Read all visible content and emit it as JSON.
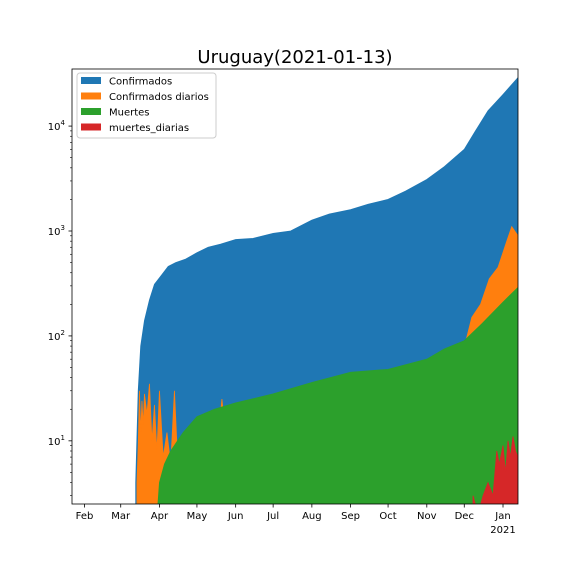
{
  "chart_data": {
    "type": "area",
    "title": "Uruguay(2021-01-13)",
    "xlabel": "",
    "ylabel": "",
    "yscale": "log",
    "ylim": [
      2.5,
      35000
    ],
    "xlim": [
      "2020-01-22",
      "2021-01-13"
    ],
    "grid": false,
    "legend_position": "upper-left",
    "x_ticks": [
      {
        "date": "2020-02-01",
        "label": "Feb"
      },
      {
        "date": "2020-03-01",
        "label": "Mar"
      },
      {
        "date": "2020-04-01",
        "label": "Apr"
      },
      {
        "date": "2020-05-01",
        "label": "May"
      },
      {
        "date": "2020-06-01",
        "label": "Jun"
      },
      {
        "date": "2020-07-01",
        "label": "Jul"
      },
      {
        "date": "2020-08-01",
        "label": "Aug"
      },
      {
        "date": "2020-09-01",
        "label": "Sep"
      },
      {
        "date": "2020-10-01",
        "label": "Oct"
      },
      {
        "date": "2020-11-01",
        "label": "Nov"
      },
      {
        "date": "2020-12-01",
        "label": "Dec"
      },
      {
        "date": "2021-01-01",
        "label": "Jan",
        "sublabel": "2021"
      }
    ],
    "y_ticks": [
      {
        "value": 10,
        "base": "10",
        "exp": "1"
      },
      {
        "value": 100,
        "base": "10",
        "exp": "2"
      },
      {
        "value": 1000,
        "base": "10",
        "exp": "3"
      },
      {
        "value": 10000,
        "base": "10",
        "exp": "4"
      }
    ],
    "series": [
      {
        "name": "Confirmados",
        "color": "#1f77b4",
        "points": [
          [
            "2020-03-13",
            4
          ],
          [
            "2020-03-15",
            30
          ],
          [
            "2020-03-17",
            80
          ],
          [
            "2020-03-20",
            140
          ],
          [
            "2020-03-24",
            220
          ],
          [
            "2020-03-28",
            310
          ],
          [
            "2020-04-02",
            370
          ],
          [
            "2020-04-08",
            460
          ],
          [
            "2020-04-14",
            500
          ],
          [
            "2020-04-22",
            540
          ],
          [
            "2020-05-01",
            620
          ],
          [
            "2020-05-10",
            700
          ],
          [
            "2020-05-20",
            750
          ],
          [
            "2020-06-01",
            830
          ],
          [
            "2020-06-15",
            850
          ],
          [
            "2020-07-01",
            950
          ],
          [
            "2020-07-15",
            1000
          ],
          [
            "2020-08-01",
            1270
          ],
          [
            "2020-08-15",
            1450
          ],
          [
            "2020-09-01",
            1600
          ],
          [
            "2020-09-15",
            1800
          ],
          [
            "2020-10-01",
            2000
          ],
          [
            "2020-10-15",
            2400
          ],
          [
            "2020-11-01",
            3100
          ],
          [
            "2020-11-15",
            4100
          ],
          [
            "2020-12-01",
            6000
          ],
          [
            "2020-12-10",
            9000
          ],
          [
            "2020-12-20",
            14000
          ],
          [
            "2021-01-01",
            20000
          ],
          [
            "2021-01-13",
            29000
          ]
        ]
      },
      {
        "name": "Confirmados diarios",
        "color": "#ff7f0e",
        "points": [
          [
            "2020-03-14",
            4
          ],
          [
            "2020-03-15",
            9
          ],
          [
            "2020-03-16",
            30
          ],
          [
            "2020-03-17",
            12
          ],
          [
            "2020-03-18",
            24
          ],
          [
            "2020-03-19",
            14
          ],
          [
            "2020-03-20",
            28
          ],
          [
            "2020-03-22",
            18
          ],
          [
            "2020-03-24",
            35
          ],
          [
            "2020-03-26",
            10
          ],
          [
            "2020-03-28",
            22
          ],
          [
            "2020-03-30",
            8
          ],
          [
            "2020-04-01",
            30
          ],
          [
            "2020-04-04",
            7
          ],
          [
            "2020-04-07",
            12
          ],
          [
            "2020-04-10",
            6
          ],
          [
            "2020-04-13",
            30
          ],
          [
            "2020-04-16",
            5
          ],
          [
            "2020-04-19",
            8
          ],
          [
            "2020-04-22",
            4
          ],
          [
            "2020-04-26",
            10
          ],
          [
            "2020-05-01",
            7
          ],
          [
            "2020-05-06",
            18
          ],
          [
            "2020-05-11",
            12
          ],
          [
            "2020-05-16",
            6
          ],
          [
            "2020-05-21",
            25
          ],
          [
            "2020-05-27",
            5
          ],
          [
            "2020-06-02",
            12
          ],
          [
            "2020-06-08",
            5
          ],
          [
            "2020-06-15",
            10
          ],
          [
            "2020-06-22",
            4
          ],
          [
            "2020-06-29",
            12
          ],
          [
            "2020-07-06",
            8
          ],
          [
            "2020-07-13",
            28
          ],
          [
            "2020-07-20",
            8
          ],
          [
            "2020-07-27",
            30
          ],
          [
            "2020-08-03",
            12
          ],
          [
            "2020-08-10",
            28
          ],
          [
            "2020-08-17",
            9
          ],
          [
            "2020-08-24",
            25
          ],
          [
            "2020-08-31",
            10
          ],
          [
            "2020-09-07",
            28
          ],
          [
            "2020-09-14",
            14
          ],
          [
            "2020-09-21",
            30
          ],
          [
            "2020-09-28",
            18
          ],
          [
            "2020-10-05",
            14
          ],
          [
            "2020-10-12",
            30
          ],
          [
            "2020-10-19",
            32
          ],
          [
            "2020-10-26",
            40
          ],
          [
            "2020-11-02",
            35
          ],
          [
            "2020-11-09",
            50
          ],
          [
            "2020-11-16",
            60
          ],
          [
            "2020-11-23",
            80
          ],
          [
            "2020-11-30",
            70
          ],
          [
            "2020-12-07",
            150
          ],
          [
            "2020-12-14",
            200
          ],
          [
            "2020-12-21",
            350
          ],
          [
            "2020-12-28",
            450
          ],
          [
            "2021-01-04",
            800
          ],
          [
            "2021-01-08",
            1100
          ],
          [
            "2021-01-13",
            900
          ]
        ]
      },
      {
        "name": "Muertes",
        "color": "#2ca02c",
        "points": [
          [
            "2020-03-29",
            1
          ],
          [
            "2020-04-01",
            4
          ],
          [
            "2020-04-05",
            6
          ],
          [
            "2020-04-10",
            8
          ],
          [
            "2020-04-20",
            12
          ],
          [
            "2020-05-01",
            17
          ],
          [
            "2020-05-15",
            20
          ],
          [
            "2020-06-01",
            23
          ],
          [
            "2020-07-01",
            28
          ],
          [
            "2020-08-01",
            36
          ],
          [
            "2020-09-01",
            45
          ],
          [
            "2020-10-01",
            48
          ],
          [
            "2020-11-01",
            60
          ],
          [
            "2020-11-15",
            75
          ],
          [
            "2020-12-01",
            90
          ],
          [
            "2020-12-15",
            130
          ],
          [
            "2021-01-01",
            210
          ],
          [
            "2021-01-13",
            290
          ]
        ]
      },
      {
        "name": "muertes_diarias",
        "color": "#d62728",
        "points": [
          [
            "2020-12-08",
            3
          ],
          [
            "2020-12-12",
            2
          ],
          [
            "2020-12-16",
            3
          ],
          [
            "2020-12-20",
            4
          ],
          [
            "2020-12-24",
            3
          ],
          [
            "2020-12-27",
            8
          ],
          [
            "2020-12-29",
            6
          ],
          [
            "2021-01-01",
            9
          ],
          [
            "2021-01-03",
            5
          ],
          [
            "2021-01-05",
            10
          ],
          [
            "2021-01-07",
            7
          ],
          [
            "2021-01-09",
            11
          ],
          [
            "2021-01-11",
            8
          ],
          [
            "2021-01-13",
            7
          ]
        ]
      }
    ]
  }
}
